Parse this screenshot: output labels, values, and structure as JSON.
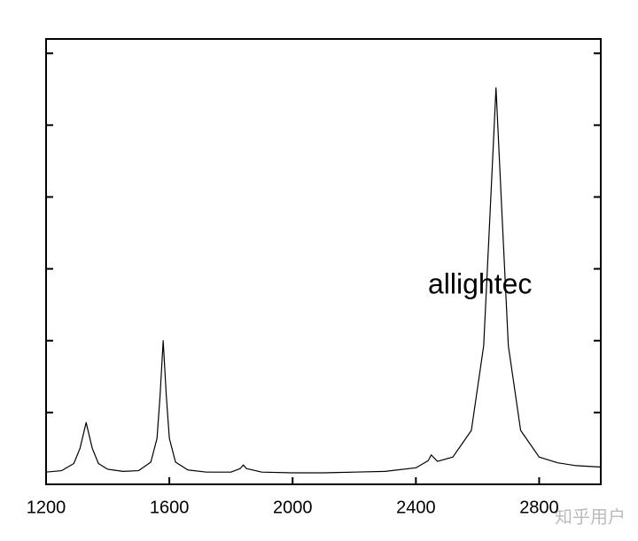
{
  "chart_data": {
    "type": "line",
    "annotation": "allightec",
    "watermark": "知乎用户",
    "color": "#000000",
    "x": [
      1200,
      1250,
      1290,
      1310,
      1330,
      1350,
      1370,
      1400,
      1450,
      1500,
      1540,
      1560,
      1570,
      1580,
      1590,
      1600,
      1620,
      1660,
      1720,
      1800,
      1830,
      1840,
      1850,
      1900,
      2000,
      2100,
      2200,
      2300,
      2400,
      2440,
      2450,
      2470,
      2520,
      2580,
      2620,
      2640,
      2660,
      2680,
      2700,
      2740,
      2800,
      2860,
      2920,
      3000
    ],
    "values": [
      0.17,
      0.19,
      0.29,
      0.5,
      0.86,
      0.5,
      0.29,
      0.21,
      0.18,
      0.19,
      0.31,
      0.64,
      1.24,
      2.0,
      1.24,
      0.64,
      0.31,
      0.2,
      0.17,
      0.17,
      0.22,
      0.27,
      0.22,
      0.17,
      0.16,
      0.16,
      0.17,
      0.18,
      0.23,
      0.33,
      0.41,
      0.32,
      0.38,
      0.75,
      1.93,
      3.71,
      5.52,
      3.71,
      1.93,
      0.75,
      0.38,
      0.3,
      0.26,
      0.24
    ],
    "xlim": [
      1200,
      3000
    ],
    "xticks": [
      1200,
      1600,
      2000,
      2400,
      2800
    ],
    "ylim": [
      0,
      6.2
    ],
    "yticks": [
      1,
      2,
      3,
      4,
      5,
      6
    ]
  }
}
